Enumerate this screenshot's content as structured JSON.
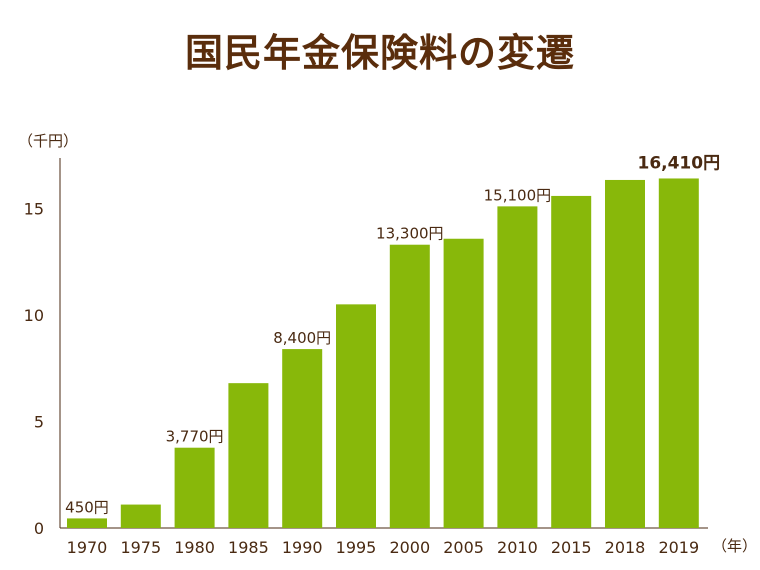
{
  "title": "国民年金保険料の変遷",
  "chart_data": {
    "type": "bar",
    "title": "国民年金保険料の変遷",
    "ylabel": "（千円）",
    "xlabel": "（年）",
    "categories": [
      "1970",
      "1975",
      "1980",
      "1985",
      "1990",
      "1995",
      "2000",
      "2005",
      "2010",
      "2015",
      "2018",
      "2019"
    ],
    "values": [
      0.45,
      1.1,
      3.77,
      6.8,
      8.4,
      10.5,
      13.3,
      13.58,
      15.1,
      15.59,
      16.34,
      16.41
    ],
    "ylim": [
      0,
      17.5
    ],
    "yticks": [
      0,
      5,
      10,
      15
    ],
    "bar_color": "#88b80a",
    "data_labels": [
      {
        "category": "1970",
        "text": "450円",
        "emphasis": false
      },
      {
        "category": "1980",
        "text": "3,770円",
        "emphasis": false
      },
      {
        "category": "1990",
        "text": "8,400円",
        "emphasis": false
      },
      {
        "category": "2000",
        "text": "13,300円",
        "emphasis": false
      },
      {
        "category": "2010",
        "text": "15,100円",
        "emphasis": false
      },
      {
        "category": "2019",
        "text": "16,410円",
        "emphasis": true
      }
    ],
    "grid": false,
    "legend": "none"
  }
}
